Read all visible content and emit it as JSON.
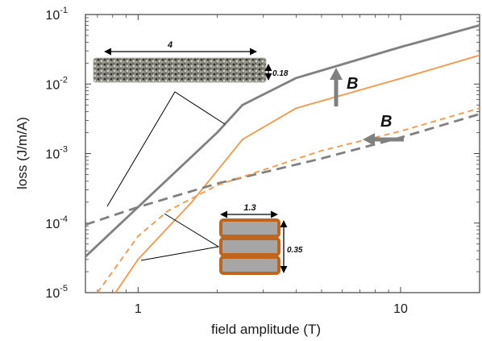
{
  "chart_data": {
    "type": "line",
    "xlabel": "field amplitude (T)",
    "ylabel": "loss (J/m/A)",
    "x_scale": "log",
    "y_scale": "log",
    "xlim": [
      0.63,
      20
    ],
    "ylim": [
      1e-05,
      0.1
    ],
    "x_ticks": [
      {
        "value": 1,
        "label": "1"
      },
      {
        "value": 10,
        "label": "10"
      }
    ],
    "y_ticks": [
      {
        "value": 1e-05,
        "base": "10",
        "exp": "-5"
      },
      {
        "value": 0.0001,
        "base": "10",
        "exp": "-4"
      },
      {
        "value": 0.001,
        "base": "10",
        "exp": "-3"
      },
      {
        "value": 0.01,
        "base": "10",
        "exp": "-2"
      },
      {
        "value": 0.1,
        "base": "10",
        "exp": "-1"
      }
    ],
    "grid": false,
    "series": [
      {
        "color": "#808080",
        "style": "solid",
        "points": [
          [
            0.63,
            3.3e-05
          ],
          [
            1.0,
            0.00017
          ],
          [
            2.0,
            0.002
          ],
          [
            2.5,
            0.005
          ],
          [
            4.0,
            0.0122
          ],
          [
            10.0,
            0.034
          ],
          [
            20.0,
            0.07
          ]
        ]
      },
      {
        "color": "#f79646",
        "style": "solid",
        "points": [
          [
            0.82,
            1e-05
          ],
          [
            1.0,
            3e-05
          ],
          [
            1.6,
            0.0002
          ],
          [
            2.5,
            0.0016
          ],
          [
            4.0,
            0.0045
          ],
          [
            10.0,
            0.012
          ],
          [
            20.0,
            0.026
          ]
        ]
      },
      {
        "color": "#808080",
        "style": "dashed",
        "points": [
          [
            0.63,
            9.5e-05
          ],
          [
            1.0,
            0.00017
          ],
          [
            2.0,
            0.00037
          ],
          [
            5.0,
            0.00085
          ],
          [
            10.0,
            0.0017
          ],
          [
            20.0,
            0.0037
          ]
        ]
      },
      {
        "color": "#f79646",
        "style": "dashed",
        "points": [
          [
            0.7,
            1e-05
          ],
          [
            1.0,
            6.5e-05
          ],
          [
            1.3,
            0.00015
          ],
          [
            2.0,
            0.00035
          ],
          [
            5.0,
            0.0011
          ],
          [
            10.0,
            0.0021
          ],
          [
            20.0,
            0.0045
          ]
        ]
      }
    ],
    "annotations": {
      "tape_width": "4",
      "tape_thickness": "0.18",
      "stack_width": "1.3",
      "stack_height": "0.35",
      "field_parallel": "B",
      "field_perpendicular": "B"
    }
  }
}
